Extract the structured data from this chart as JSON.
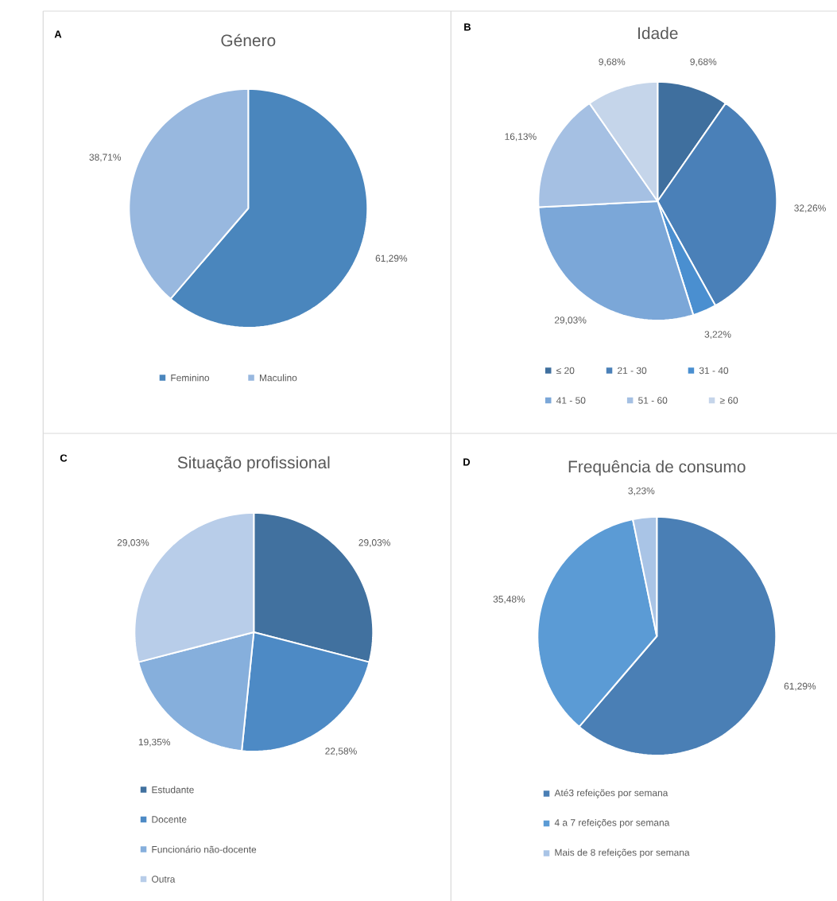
{
  "chart_data": [
    {
      "type": "pie",
      "title": "Género",
      "annotations": [
        "A"
      ],
      "categories": [
        "Feminino",
        "Maculino"
      ],
      "values": [
        61.29,
        38.71
      ],
      "colors": [
        "#4a86bd",
        "#98b8df"
      ],
      "value_labels": [
        "61,29%",
        "38,71%"
      ],
      "legend": "bottom"
    },
    {
      "type": "pie",
      "title": "Idade",
      "annotations": [
        "B"
      ],
      "categories": [
        "≤ 20",
        "21 - 30",
        "31 - 40",
        "41 - 50",
        "51 - 60",
        "≥ 60"
      ],
      "values": [
        9.68,
        32.26,
        3.22,
        29.03,
        16.13,
        9.68
      ],
      "colors": [
        "#3f6f9e",
        "#4a80b8",
        "#4a8fd0",
        "#7ba7d8",
        "#a5c0e3",
        "#c5d5ea"
      ],
      "value_labels": [
        "9,68%",
        "32,26%",
        "3,22%",
        "29,03%",
        "16,13%",
        "9,68%"
      ],
      "legend": "bottom"
    },
    {
      "type": "pie",
      "title": "Situação profissional",
      "annotations": [
        "C"
      ],
      "categories": [
        "Estudante",
        "Docente",
        "Funcionário não-docente",
        "Outra"
      ],
      "values": [
        29.03,
        22.58,
        19.35,
        29.03
      ],
      "colors": [
        "#41719f",
        "#4d8ac5",
        "#86afdc",
        "#b8cde9"
      ],
      "value_labels": [
        "29,03%",
        "22,58%",
        "19,35%",
        "29,03%"
      ],
      "legend": "bottom"
    },
    {
      "type": "pie",
      "title": "Frequência de consumo",
      "annotations": [
        "D"
      ],
      "categories": [
        "Até3 refeições por semana",
        "4 a 7 refeições por semana",
        "Mais de 8 refeições por semana"
      ],
      "values": [
        61.29,
        35.48,
        3.23
      ],
      "colors": [
        "#4a7fb5",
        "#5b9bd5",
        "#a9c4e6"
      ],
      "value_labels": [
        "61,29%",
        "35,48%",
        "3,23%"
      ],
      "legend": "bottom"
    }
  ]
}
